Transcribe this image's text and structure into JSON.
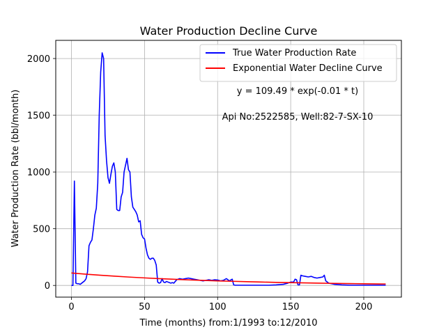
{
  "chart_data": {
    "type": "line",
    "title": "Water Production Decline Curve",
    "xlabel": "Time (months) from:1/1993 to:12/2010",
    "ylabel": "Water Production Rate (bbl/month)",
    "xlim": [
      -10.75,
      225.75
    ],
    "ylim": [
      -103,
      2160
    ],
    "xticks": [
      0,
      50,
      100,
      150,
      200
    ],
    "yticks": [
      0,
      500,
      1000,
      1500,
      2000
    ],
    "grid": true,
    "legend_position": "top-right",
    "annotations": [
      "y = 109.49 * exp(-0.01 * t)",
      "Api No:2522585, Well:82-7-SX-10"
    ],
    "colors": {
      "actual": "#0000ff",
      "fit": "#ff0000"
    },
    "series": [
      {
        "name": "True Water Production Rate",
        "x": [
          0,
          1,
          2,
          3,
          4,
          5,
          6,
          7,
          8,
          9,
          10,
          11,
          12,
          13,
          14,
          15,
          16,
          17,
          18,
          19,
          20,
          21,
          22,
          23,
          24,
          25,
          26,
          27,
          28,
          29,
          30,
          31,
          32,
          33,
          34,
          35,
          36,
          37,
          38,
          39,
          40,
          41,
          42,
          43,
          44,
          45,
          46,
          47,
          48,
          49,
          50,
          51,
          52,
          53,
          54,
          55,
          56,
          57,
          58,
          59,
          60,
          61,
          62,
          63,
          64,
          65,
          66,
          67,
          68,
          69,
          70,
          72,
          74,
          76,
          78,
          80,
          82,
          84,
          86,
          88,
          90,
          92,
          94,
          96,
          98,
          100,
          102,
          104,
          106,
          108,
          110,
          111,
          112,
          114,
          116,
          120,
          125,
          130,
          135,
          140,
          145,
          148,
          150,
          152,
          153,
          154,
          155,
          156,
          157,
          158,
          160,
          162,
          164,
          166,
          168,
          170,
          172,
          173,
          174,
          176,
          178,
          180,
          185,
          190,
          195,
          200,
          205,
          210,
          215
        ],
        "values": [
          0,
          0,
          920,
          20,
          15,
          15,
          10,
          20,
          30,
          40,
          60,
          120,
          350,
          380,
          400,
          500,
          620,
          680,
          900,
          1500,
          1880,
          2050,
          2000,
          1320,
          1100,
          950,
          900,
          980,
          1050,
          1080,
          1000,
          670,
          660,
          660,
          780,
          820,
          1000,
          1060,
          1120,
          1020,
          1000,
          780,
          690,
          670,
          650,
          620,
          560,
          570,
          450,
          420,
          410,
          330,
          270,
          240,
          230,
          240,
          240,
          220,
          180,
          30,
          20,
          25,
          60,
          30,
          25,
          35,
          30,
          25,
          20,
          25,
          20,
          50,
          60,
          55,
          60,
          65,
          60,
          55,
          50,
          45,
          40,
          45,
          50,
          45,
          50,
          48,
          40,
          45,
          60,
          40,
          55,
          5,
          2,
          2,
          2,
          2,
          2,
          2,
          2,
          5,
          10,
          20,
          30,
          30,
          55,
          50,
          5,
          5,
          90,
          85,
          80,
          75,
          80,
          70,
          65,
          70,
          75,
          90,
          40,
          20,
          15,
          10,
          5,
          2,
          2,
          2,
          2,
          2,
          2
        ]
      },
      {
        "name": "Exponential Water Decline Curve",
        "x": [
          0,
          10,
          20,
          30,
          40,
          50,
          60,
          70,
          80,
          90,
          100,
          110,
          120,
          130,
          140,
          150,
          160,
          170,
          180,
          190,
          200,
          210,
          215
        ],
        "values": [
          109.49,
          99.07,
          89.64,
          81.11,
          73.39,
          66.41,
          60.09,
          54.37,
          49.2,
          44.51,
          40.28,
          36.45,
          32.98,
          29.84,
          27.0,
          24.43,
          22.1,
          20.0,
          18.1,
          16.38,
          14.82,
          13.41,
          12.75
        ]
      }
    ]
  }
}
